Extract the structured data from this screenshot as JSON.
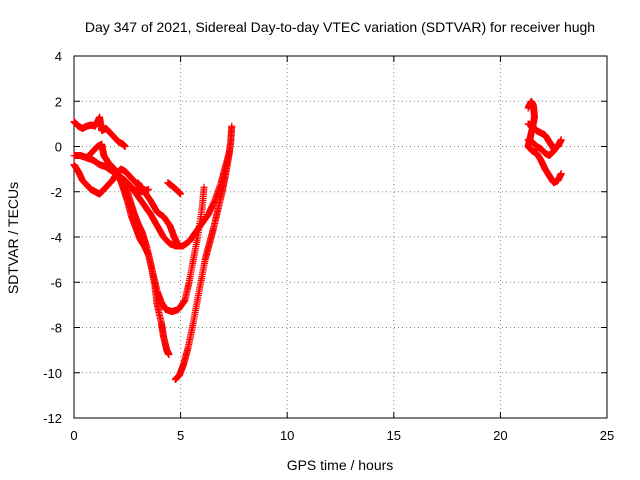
{
  "chart_data": {
    "type": "scatter",
    "title": "Day 347 of 2021, Sidereal Day-to-day VTEC variation (SDTVAR) for receiver hugh",
    "xlabel": "GPS time / hours",
    "ylabel": "SDTVAR / TECUs",
    "xlim": [
      0,
      25
    ],
    "ylim": [
      -12,
      4
    ],
    "xticks": [
      "0",
      "5",
      "10",
      "15",
      "20",
      "25"
    ],
    "yticks": [
      "4",
      "2",
      "0",
      "-2",
      "-4",
      "-6",
      "-8",
      "-10",
      "-12"
    ],
    "grid": true,
    "legend": "none",
    "marker": "+",
    "marker_color": "#ff0000",
    "series": [
      {
        "points": [
          [
            0.0,
            1.1
          ],
          [
            0.2,
            0.9
          ],
          [
            0.4,
            0.8
          ],
          [
            0.6,
            0.9
          ],
          [
            0.8,
            0.95
          ],
          [
            1.0,
            0.9
          ],
          [
            1.2,
            1.3
          ],
          [
            1.3,
            0.7
          ],
          [
            1.5,
            0.8
          ],
          [
            1.7,
            0.6
          ],
          [
            1.9,
            0.4
          ],
          [
            2.1,
            0.2
          ],
          [
            2.3,
            0.1
          ],
          [
            2.4,
            0.0
          ]
        ]
      },
      {
        "points": [
          [
            0.0,
            -0.4
          ],
          [
            0.3,
            -0.4
          ],
          [
            0.6,
            -0.5
          ],
          [
            0.9,
            -0.6
          ],
          [
            1.2,
            -0.8
          ],
          [
            1.5,
            -0.9
          ],
          [
            1.8,
            -1.1
          ],
          [
            2.1,
            -1.3
          ],
          [
            2.4,
            -1.5
          ],
          [
            2.7,
            -1.8
          ],
          [
            3.0,
            -2.2
          ],
          [
            3.3,
            -2.6
          ],
          [
            3.6,
            -3.0
          ],
          [
            3.9,
            -3.5
          ],
          [
            4.2,
            -4.0
          ],
          [
            4.5,
            -4.3
          ],
          [
            4.8,
            -4.4
          ],
          [
            5.1,
            -4.4
          ],
          [
            5.4,
            -4.2
          ],
          [
            5.7,
            -3.8
          ],
          [
            6.0,
            -3.4
          ],
          [
            6.3,
            -3.0
          ],
          [
            6.6,
            -2.4
          ],
          [
            6.9,
            -1.6
          ],
          [
            7.1,
            -0.9
          ],
          [
            7.3,
            -0.2
          ]
        ]
      },
      {
        "points": [
          [
            0.0,
            -0.8
          ],
          [
            0.2,
            -1.1
          ],
          [
            0.4,
            -1.5
          ],
          [
            0.6,
            -1.7
          ],
          [
            0.8,
            -1.9
          ],
          [
            1.0,
            -2.0
          ],
          [
            1.2,
            -2.1
          ],
          [
            1.4,
            -1.9
          ],
          [
            1.6,
            -1.7
          ],
          [
            1.8,
            -1.5
          ],
          [
            2.0,
            -1.2
          ],
          [
            2.2,
            -1.0
          ],
          [
            2.4,
            -1.1
          ],
          [
            2.6,
            -1.3
          ],
          [
            2.8,
            -1.5
          ],
          [
            3.0,
            -1.7
          ],
          [
            3.2,
            -1.8
          ]
        ]
      },
      {
        "points": [
          [
            0.3,
            -0.4
          ],
          [
            0.6,
            -0.5
          ],
          [
            0.9,
            -0.2
          ],
          [
            1.1,
            0.0
          ],
          [
            1.3,
            0.1
          ],
          [
            1.4,
            -0.4
          ],
          [
            1.6,
            -0.7
          ],
          [
            1.9,
            -1.0
          ],
          [
            2.1,
            -1.3
          ],
          [
            2.3,
            -1.8
          ],
          [
            2.5,
            -2.4
          ],
          [
            2.7,
            -3.1
          ],
          [
            2.9,
            -3.6
          ],
          [
            3.1,
            -4.1
          ],
          [
            3.3,
            -4.4
          ],
          [
            3.5,
            -4.8
          ],
          [
            3.7,
            -5.6
          ],
          [
            3.9,
            -6.4
          ],
          [
            4.1,
            -6.9
          ],
          [
            4.3,
            -7.2
          ],
          [
            4.6,
            -7.3
          ],
          [
            4.9,
            -7.2
          ],
          [
            5.2,
            -6.8
          ],
          [
            5.4,
            -6.0
          ],
          [
            5.6,
            -5.0
          ],
          [
            5.8,
            -4.0
          ],
          [
            6.0,
            -2.8
          ],
          [
            6.1,
            -1.8
          ]
        ]
      },
      {
        "points": [
          [
            2.4,
            -1.6
          ],
          [
            2.6,
            -2.3
          ],
          [
            2.8,
            -2.9
          ],
          [
            3.0,
            -3.4
          ],
          [
            3.2,
            -3.8
          ],
          [
            3.4,
            -4.4
          ],
          [
            3.6,
            -5.2
          ],
          [
            3.8,
            -6.2
          ],
          [
            3.9,
            -7.0
          ],
          [
            4.1,
            -7.8
          ],
          [
            4.2,
            -8.4
          ],
          [
            4.35,
            -9.0
          ],
          [
            4.45,
            -9.2
          ]
        ]
      },
      {
        "points": [
          [
            4.75,
            -10.3
          ],
          [
            4.95,
            -10.1
          ],
          [
            5.15,
            -9.6
          ],
          [
            5.35,
            -8.9
          ],
          [
            5.55,
            -8.0
          ],
          [
            5.75,
            -7.0
          ],
          [
            5.95,
            -6.0
          ],
          [
            6.15,
            -5.0
          ],
          [
            6.35,
            -4.3
          ],
          [
            6.55,
            -3.6
          ],
          [
            6.75,
            -2.8
          ],
          [
            6.95,
            -2.0
          ],
          [
            7.1,
            -1.3
          ],
          [
            7.25,
            -0.5
          ],
          [
            7.35,
            0.2
          ],
          [
            7.4,
            0.9
          ]
        ]
      },
      {
        "points": [
          [
            3.0,
            -1.6
          ],
          [
            3.3,
            -2.0
          ],
          [
            3.6,
            -2.4
          ],
          [
            3.9,
            -2.9
          ],
          [
            4.2,
            -3.1
          ],
          [
            4.5,
            -3.5
          ],
          [
            4.7,
            -4.0
          ],
          [
            4.9,
            -4.4
          ]
        ]
      },
      {
        "points": [
          [
            4.4,
            -1.6
          ],
          [
            4.6,
            -1.75
          ],
          [
            4.8,
            -1.9
          ],
          [
            5.0,
            -2.1
          ]
        ]
      },
      {
        "points": [
          [
            2.9,
            -1.9
          ],
          [
            3.2,
            -2.0
          ],
          [
            3.5,
            -1.9
          ]
        ]
      },
      {
        "points": [
          [
            21.3,
            1.7
          ],
          [
            21.45,
            2.0
          ],
          [
            21.55,
            1.8
          ],
          [
            21.6,
            1.3
          ],
          [
            21.5,
            0.8
          ],
          [
            21.4,
            0.4
          ],
          [
            21.3,
            0.0
          ],
          [
            21.5,
            -0.2
          ],
          [
            21.7,
            -0.3
          ],
          [
            21.9,
            -0.6
          ],
          [
            22.1,
            -1.0
          ],
          [
            22.3,
            -1.3
          ],
          [
            22.5,
            -1.6
          ],
          [
            22.7,
            -1.5
          ],
          [
            22.85,
            -1.2
          ]
        ]
      },
      {
        "points": [
          [
            21.3,
            1.0
          ],
          [
            21.5,
            0.9
          ],
          [
            21.7,
            0.7
          ],
          [
            21.9,
            0.6
          ],
          [
            22.1,
            0.5
          ],
          [
            22.3,
            0.2
          ],
          [
            22.5,
            -0.1
          ],
          [
            22.7,
            0.0
          ],
          [
            22.85,
            0.3
          ]
        ]
      },
      {
        "points": [
          [
            21.3,
            0.3
          ],
          [
            21.5,
            0.2
          ],
          [
            21.7,
            0.0
          ],
          [
            21.9,
            -0.1
          ],
          [
            22.1,
            -0.3
          ],
          [
            22.3,
            -0.4
          ],
          [
            22.5,
            -0.2
          ],
          [
            22.7,
            0.1
          ]
        ]
      }
    ]
  }
}
